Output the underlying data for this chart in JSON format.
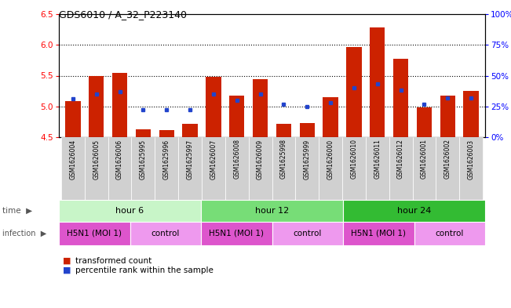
{
  "title": "GDS6010 / A_32_P223140",
  "samples": [
    "GSM1626004",
    "GSM1626005",
    "GSM1626006",
    "GSM1625995",
    "GSM1625996",
    "GSM1625997",
    "GSM1626007",
    "GSM1626008",
    "GSM1626009",
    "GSM1625998",
    "GSM1625999",
    "GSM1626000",
    "GSM1626010",
    "GSM1626011",
    "GSM1626012",
    "GSM1626001",
    "GSM1626002",
    "GSM1626003"
  ],
  "red_values": [
    5.08,
    5.5,
    5.55,
    4.63,
    4.62,
    4.72,
    5.48,
    5.17,
    5.44,
    4.72,
    4.73,
    5.15,
    5.96,
    6.28,
    5.78,
    4.98,
    5.18,
    5.25
  ],
  "blue_values": [
    0.31,
    0.35,
    0.37,
    0.22,
    0.22,
    0.22,
    0.35,
    0.3,
    0.35,
    0.27,
    0.25,
    0.28,
    0.4,
    0.43,
    0.38,
    0.27,
    0.32,
    0.32
  ],
  "y_min": 4.5,
  "y_max": 6.5,
  "y_ticks": [
    4.5,
    5.0,
    5.5,
    6.0,
    6.5
  ],
  "y2_ticks": [
    0,
    25,
    50,
    75,
    100
  ],
  "y2_labels": [
    "0%",
    "25%",
    "50%",
    "75%",
    "100%"
  ],
  "dotted_lines": [
    5.0,
    5.5,
    6.0
  ],
  "time_labels": [
    "hour 6",
    "hour 12",
    "hour 24"
  ],
  "time_colors": [
    "#c8f5c8",
    "#77dd77",
    "#33bb33"
  ],
  "infection_labels": [
    "H5N1 (MOI 1)",
    "control",
    "H5N1 (MOI 1)",
    "control",
    "H5N1 (MOI 1)",
    "control"
  ],
  "infection_color_h5n1": "#dd55cc",
  "infection_color_ctrl": "#ee99ee",
  "bar_color": "#cc2200",
  "dot_color": "#2244cc",
  "sample_bg": "#d0d0d0"
}
